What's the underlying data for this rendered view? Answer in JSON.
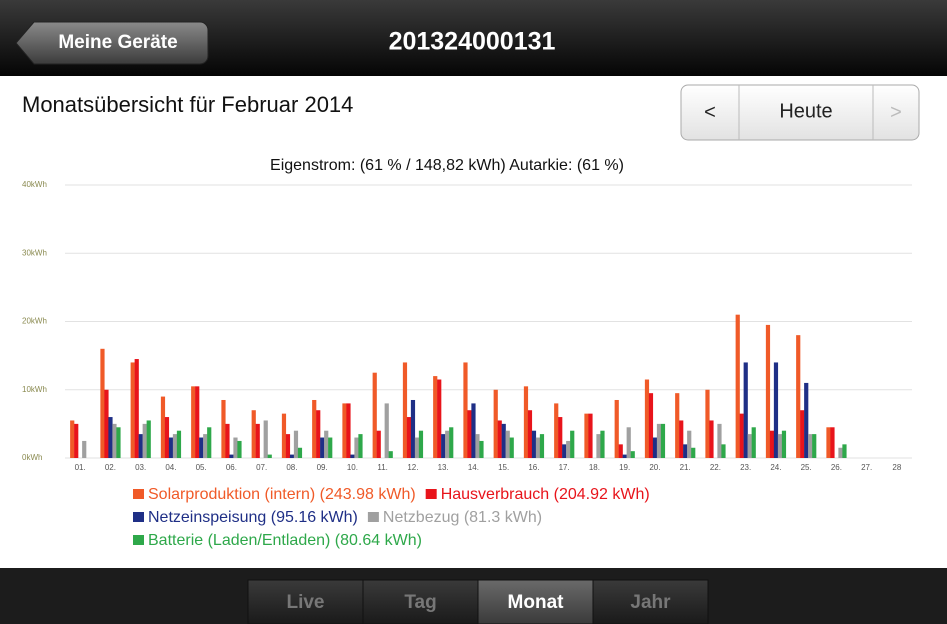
{
  "ui": {
    "back_button": "Meine Geräte",
    "device_id": "201324000131",
    "heading": "Monatsübersicht für Februar 2014",
    "nav": {
      "prev": "<",
      "today": "Heute",
      "next": ">"
    },
    "tabs": [
      "Live",
      "Tag",
      "Monat",
      "Jahr"
    ],
    "selected_tab": 2
  },
  "chart_data": {
    "type": "bar",
    "title": "Eigenstrom: (61 % / 148,82 kWh) Autarkie: (61 %)",
    "categories": [
      "01.",
      "02.",
      "03.",
      "04.",
      "05.",
      "06.",
      "07.",
      "08.",
      "09.",
      "10.",
      "11.",
      "12.",
      "13.",
      "14.",
      "15.",
      "16.",
      "17.",
      "18.",
      "19.",
      "20.",
      "21.",
      "22.",
      "23.",
      "24.",
      "25.",
      "26.",
      "27.",
      "28"
    ],
    "ylim": [
      0,
      40
    ],
    "yticks": [
      {
        "value": 0,
        "label": "0kWh"
      },
      {
        "value": 10,
        "label": "10kWh"
      },
      {
        "value": 20,
        "label": "20kWh"
      },
      {
        "value": 30,
        "label": "30kWh"
      },
      {
        "value": 40,
        "label": "40kWh"
      }
    ],
    "grid": true,
    "series": [
      {
        "name": "Solarproduktion (intern) (243.98 kWh)",
        "color": "#f05a28",
        "values": [
          5.5,
          16,
          14,
          9,
          10.5,
          8.5,
          7,
          6.5,
          8.5,
          8,
          12.5,
          14,
          12,
          14,
          10,
          10.5,
          8,
          6.5,
          8.5,
          11.5,
          9.5,
          10,
          21,
          19.5,
          18,
          4.5,
          0,
          0
        ]
      },
      {
        "name": "Hausverbrauch (204.92 kWh)",
        "color": "#e8141b",
        "values": [
          5,
          10,
          14.5,
          6,
          10.5,
          5,
          5,
          3.5,
          7,
          8,
          4,
          6,
          11.5,
          7,
          5.5,
          7,
          6,
          6.5,
          2,
          9.5,
          5.5,
          5.5,
          6.5,
          4,
          7,
          4.5,
          0,
          0
        ]
      },
      {
        "name": "Netzeinspeisung (95.16 kWh)",
        "color": "#1f2f86",
        "values": [
          0,
          6,
          3.5,
          3,
          3,
          0.5,
          0,
          0.5,
          3,
          0.5,
          0,
          8.5,
          3.5,
          8,
          5,
          4,
          2,
          0,
          0.5,
          3,
          2,
          0,
          14,
          14,
          11,
          0,
          0,
          0
        ]
      },
      {
        "name": "Netzbezug (81.3 kWh)",
        "color": "#a0a0a0",
        "values": [
          2.5,
          5,
          5,
          3.5,
          3.5,
          3,
          5.5,
          4,
          4,
          3,
          8,
          3,
          4,
          3.5,
          4,
          3,
          2.5,
          3.5,
          4.5,
          5,
          4,
          5,
          3.5,
          3.5,
          3.5,
          1.5,
          0,
          0
        ]
      },
      {
        "name": "Batterie (Laden/Entladen) (80.64 kWh)",
        "color": "#2ea84a",
        "values": [
          0,
          4.5,
          5.5,
          4,
          4.5,
          2.5,
          0.5,
          1.5,
          3,
          3.5,
          1,
          4,
          4.5,
          2.5,
          3,
          3.5,
          4,
          4,
          1,
          5,
          1.5,
          2,
          4.5,
          4,
          3.5,
          2,
          0,
          0
        ]
      }
    ]
  }
}
